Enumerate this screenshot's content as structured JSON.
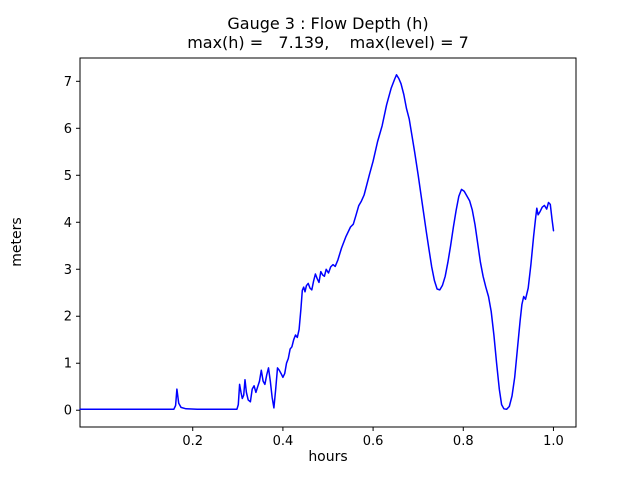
{
  "figure": {
    "title_line1": "Gauge 3 : Flow Depth (h)",
    "title_line2": "max(h) =   7.139,    max(level) = 7",
    "xlabel": "hours",
    "ylabel": "meters"
  },
  "chart_data": {
    "type": "line",
    "title": "Gauge 3 : Flow Depth (h)",
    "subtitle": "max(h) =   7.139,    max(level) = 7",
    "xlabel": "hours",
    "ylabel": "meters",
    "xlim": [
      -0.05,
      1.05
    ],
    "ylim": [
      -0.357,
      7.496
    ],
    "xticks": [
      0.2,
      0.4,
      0.6,
      0.8,
      1.0
    ],
    "yticks": [
      0,
      1,
      2,
      3,
      4,
      5,
      6,
      7
    ],
    "grid": false,
    "legend": null,
    "line_color": "#0000ff",
    "line_width": 1.5,
    "max_h": 7.139,
    "max_level": 7,
    "points": [
      [
        -0.05,
        0.02
      ],
      [
        0.0,
        0.02
      ],
      [
        0.05,
        0.02
      ],
      [
        0.1,
        0.02
      ],
      [
        0.14,
        0.02
      ],
      [
        0.158,
        0.02
      ],
      [
        0.162,
        0.1
      ],
      [
        0.165,
        0.45
      ],
      [
        0.169,
        0.15
      ],
      [
        0.174,
        0.06
      ],
      [
        0.185,
        0.03
      ],
      [
        0.21,
        0.02
      ],
      [
        0.25,
        0.02
      ],
      [
        0.29,
        0.02
      ],
      [
        0.298,
        0.02
      ],
      [
        0.301,
        0.12
      ],
      [
        0.304,
        0.55
      ],
      [
        0.307,
        0.38
      ],
      [
        0.31,
        0.25
      ],
      [
        0.313,
        0.32
      ],
      [
        0.316,
        0.65
      ],
      [
        0.319,
        0.38
      ],
      [
        0.323,
        0.22
      ],
      [
        0.328,
        0.18
      ],
      [
        0.332,
        0.45
      ],
      [
        0.336,
        0.52
      ],
      [
        0.34,
        0.38
      ],
      [
        0.344,
        0.5
      ],
      [
        0.348,
        0.62
      ],
      [
        0.352,
        0.85
      ],
      [
        0.356,
        0.62
      ],
      [
        0.36,
        0.55
      ],
      [
        0.364,
        0.75
      ],
      [
        0.368,
        0.9
      ],
      [
        0.372,
        0.62
      ],
      [
        0.376,
        0.28
      ],
      [
        0.38,
        0.05
      ],
      [
        0.384,
        0.45
      ],
      [
        0.388,
        0.9
      ],
      [
        0.392,
        0.85
      ],
      [
        0.396,
        0.78
      ],
      [
        0.4,
        0.7
      ],
      [
        0.404,
        0.78
      ],
      [
        0.408,
        1.0
      ],
      [
        0.412,
        1.1
      ],
      [
        0.416,
        1.3
      ],
      [
        0.42,
        1.35
      ],
      [
        0.424,
        1.5
      ],
      [
        0.428,
        1.6
      ],
      [
        0.432,
        1.55
      ],
      [
        0.436,
        1.72
      ],
      [
        0.44,
        2.15
      ],
      [
        0.443,
        2.55
      ],
      [
        0.446,
        2.62
      ],
      [
        0.449,
        2.52
      ],
      [
        0.452,
        2.65
      ],
      [
        0.456,
        2.7
      ],
      [
        0.46,
        2.6
      ],
      [
        0.464,
        2.56
      ],
      [
        0.468,
        2.75
      ],
      [
        0.472,
        2.9
      ],
      [
        0.476,
        2.8
      ],
      [
        0.48,
        2.72
      ],
      [
        0.484,
        2.95
      ],
      [
        0.488,
        2.88
      ],
      [
        0.492,
        2.85
      ],
      [
        0.496,
        3.0
      ],
      [
        0.501,
        2.92
      ],
      [
        0.506,
        3.05
      ],
      [
        0.511,
        3.1
      ],
      [
        0.516,
        3.06
      ],
      [
        0.522,
        3.2
      ],
      [
        0.53,
        3.45
      ],
      [
        0.54,
        3.7
      ],
      [
        0.55,
        3.9
      ],
      [
        0.556,
        3.96
      ],
      [
        0.562,
        4.15
      ],
      [
        0.568,
        4.35
      ],
      [
        0.574,
        4.45
      ],
      [
        0.58,
        4.58
      ],
      [
        0.586,
        4.8
      ],
      [
        0.592,
        5.02
      ],
      [
        0.6,
        5.3
      ],
      [
        0.61,
        5.72
      ],
      [
        0.62,
        6.05
      ],
      [
        0.63,
        6.5
      ],
      [
        0.64,
        6.85
      ],
      [
        0.648,
        7.05
      ],
      [
        0.652,
        7.139
      ],
      [
        0.657,
        7.06
      ],
      [
        0.662,
        6.95
      ],
      [
        0.668,
        6.72
      ],
      [
        0.674,
        6.42
      ],
      [
        0.68,
        6.2
      ],
      [
        0.686,
        5.85
      ],
      [
        0.692,
        5.5
      ],
      [
        0.7,
        5.0
      ],
      [
        0.706,
        4.6
      ],
      [
        0.712,
        4.2
      ],
      [
        0.718,
        3.8
      ],
      [
        0.724,
        3.42
      ],
      [
        0.73,
        3.05
      ],
      [
        0.736,
        2.76
      ],
      [
        0.742,
        2.58
      ],
      [
        0.748,
        2.56
      ],
      [
        0.754,
        2.66
      ],
      [
        0.76,
        2.85
      ],
      [
        0.766,
        3.15
      ],
      [
        0.772,
        3.5
      ],
      [
        0.778,
        3.9
      ],
      [
        0.784,
        4.25
      ],
      [
        0.79,
        4.55
      ],
      [
        0.796,
        4.7
      ],
      [
        0.802,
        4.66
      ],
      [
        0.808,
        4.56
      ],
      [
        0.814,
        4.46
      ],
      [
        0.82,
        4.26
      ],
      [
        0.826,
        3.95
      ],
      [
        0.832,
        3.55
      ],
      [
        0.838,
        3.15
      ],
      [
        0.844,
        2.85
      ],
      [
        0.85,
        2.62
      ],
      [
        0.856,
        2.42
      ],
      [
        0.862,
        2.1
      ],
      [
        0.868,
        1.6
      ],
      [
        0.874,
        1.0
      ],
      [
        0.88,
        0.45
      ],
      [
        0.885,
        0.12
      ],
      [
        0.89,
        0.03
      ],
      [
        0.896,
        0.02
      ],
      [
        0.902,
        0.08
      ],
      [
        0.908,
        0.3
      ],
      [
        0.914,
        0.7
      ],
      [
        0.92,
        1.3
      ],
      [
        0.926,
        1.9
      ],
      [
        0.93,
        2.25
      ],
      [
        0.934,
        2.42
      ],
      [
        0.938,
        2.36
      ],
      [
        0.944,
        2.6
      ],
      [
        0.95,
        3.1
      ],
      [
        0.956,
        3.7
      ],
      [
        0.96,
        4.05
      ],
      [
        0.963,
        4.3
      ],
      [
        0.966,
        4.16
      ],
      [
        0.97,
        4.22
      ],
      [
        0.975,
        4.32
      ],
      [
        0.98,
        4.36
      ],
      [
        0.985,
        4.28
      ],
      [
        0.989,
        4.42
      ],
      [
        0.993,
        4.38
      ],
      [
        0.997,
        4.05
      ],
      [
        1.0,
        3.82
      ]
    ]
  }
}
